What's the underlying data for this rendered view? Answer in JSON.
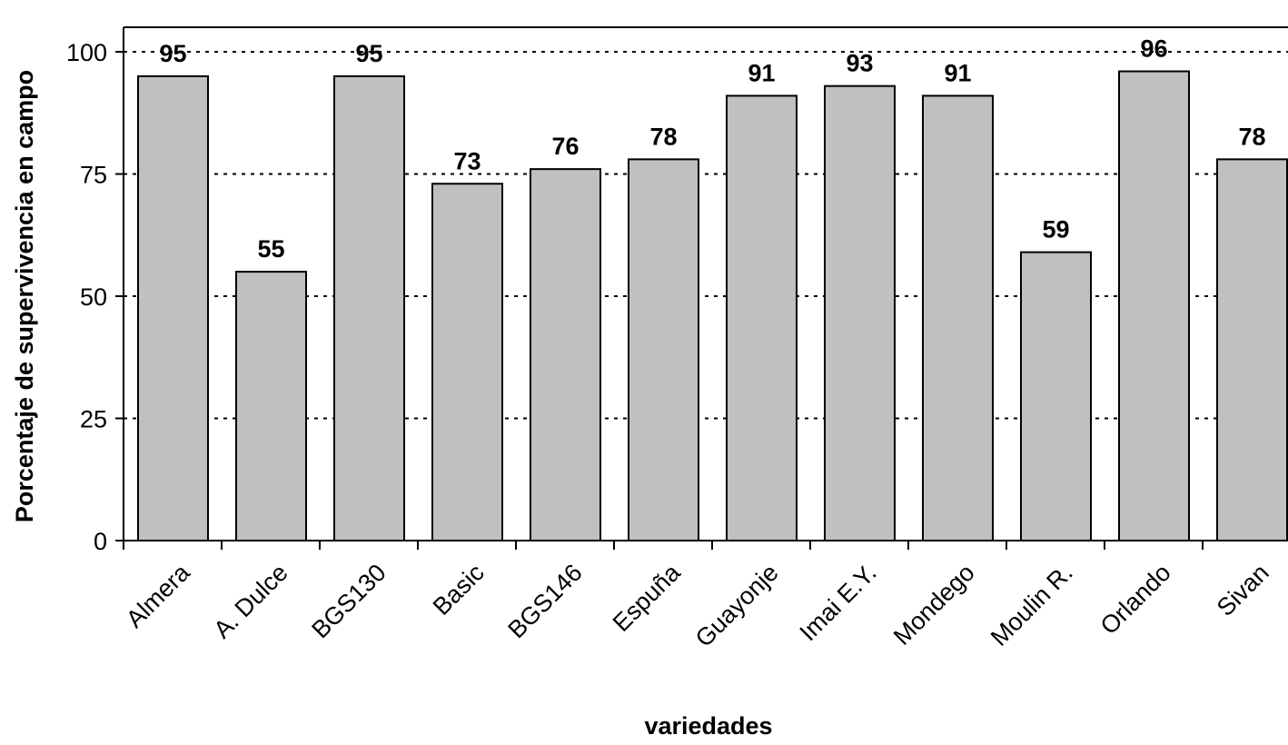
{
  "chart_data": {
    "type": "bar",
    "categories": [
      "Almera",
      "A. Dulce",
      "BGS130",
      "Basic",
      "BGS146",
      "Espuña",
      "Guayonje",
      "Imai E.Y.",
      "Mondego",
      "Moulin R.",
      "Orlando",
      "Sivan"
    ],
    "values": [
      95,
      55,
      95,
      73,
      76,
      78,
      91,
      93,
      91,
      59,
      96,
      78
    ],
    "data_labels": [
      "95",
      "55",
      "95",
      "73",
      "76",
      "78",
      "91",
      "93",
      "91",
      "59",
      "96",
      "78"
    ],
    "xlabel": "variedades",
    "ylabel": "Porcentaje de supervivencia en campo",
    "ylim": [
      0,
      100
    ],
    "yticks": [
      0,
      25,
      50,
      75,
      100
    ],
    "ytick_labels": [
      "0",
      "25",
      "50",
      "75",
      "100"
    ],
    "grid": "horizontal dotted",
    "bar_color": "#c0c0c0",
    "bar_edge_color": "#000000"
  }
}
